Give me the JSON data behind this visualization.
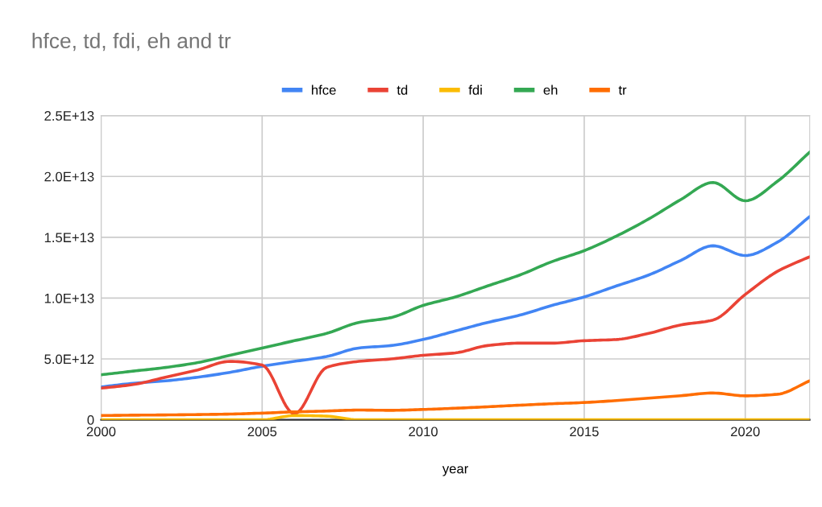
{
  "chart_data": {
    "type": "line",
    "title": "hfce, td, fdi, eh and tr",
    "xlabel": "year",
    "x": [
      2000,
      2001,
      2002,
      2003,
      2004,
      2005,
      2006,
      2007,
      2008,
      2009,
      2010,
      2011,
      2012,
      2013,
      2014,
      2015,
      2016,
      2017,
      2018,
      2019,
      2020,
      2021,
      2022
    ],
    "series": [
      {
        "name": "hfce",
        "color": "#4285f4",
        "values": [
          2700000000000.0,
          3000000000000.0,
          3200000000000.0,
          3500000000000.0,
          3900000000000.0,
          4400000000000.0,
          4800000000000.0,
          5200000000000.0,
          5900000000000.0,
          6100000000000.0,
          6600000000000.0,
          7300000000000.0,
          8000000000000.0,
          8600000000000.0,
          9400000000000.0,
          10100000000000.0,
          11000000000000.0,
          11900000000000.0,
          13100000000000.0,
          14300000000000.0,
          13500000000000.0,
          14600000000000.0,
          16700000000000.0
        ]
      },
      {
        "name": "td",
        "color": "#ea4335",
        "values": [
          2600000000000.0,
          2900000000000.0,
          3500000000000.0,
          4100000000000.0,
          4800000000000.0,
          4500000000000.0,
          500000000000.0,
          4300000000000.0,
          4800000000000.0,
          5000000000000.0,
          5300000000000.0,
          5500000000000.0,
          6100000000000.0,
          6300000000000.0,
          6300000000000.0,
          6500000000000.0,
          6600000000000.0,
          7100000000000.0,
          7800000000000.0,
          8200000000000.0,
          10300000000000.0,
          12200000000000.0,
          13400000000000.0
        ]
      },
      {
        "name": "fdi",
        "color": "#fbbc04",
        "values": [
          0,
          0,
          0,
          0,
          0,
          0,
          350000000000.0,
          300000000000.0,
          0,
          0,
          0,
          0,
          0,
          0,
          0,
          0,
          0,
          0,
          0,
          0,
          0,
          0,
          0
        ]
      },
      {
        "name": "eh",
        "color": "#34a853",
        "values": [
          3700000000000.0,
          4000000000000.0,
          4300000000000.0,
          4700000000000.0,
          5300000000000.0,
          5900000000000.0,
          6500000000000.0,
          7100000000000.0,
          8000000000000.0,
          8400000000000.0,
          9400000000000.0,
          10100000000000.0,
          11000000000000.0,
          11900000000000.0,
          13000000000000.0,
          13900000000000.0,
          15100000000000.0,
          16500000000000.0,
          18100000000000.0,
          19500000000000.0,
          18000000000000.0,
          19600000000000.0,
          22000000000000.0
        ]
      },
      {
        "name": "tr",
        "color": "#ff6d01",
        "values": [
          350000000000.0,
          380000000000.0,
          400000000000.0,
          430000000000.0,
          470000000000.0,
          550000000000.0,
          650000000000.0,
          720000000000.0,
          800000000000.0,
          780000000000.0,
          850000000000.0,
          950000000000.0,
          1070000000000.0,
          1200000000000.0,
          1320000000000.0,
          1420000000000.0,
          1580000000000.0,
          1780000000000.0,
          1980000000000.0,
          2200000000000.0,
          1970000000000.0,
          2100000000000.0,
          3200000000000.0
        ]
      }
    ],
    "xlim": [
      2000,
      2022
    ],
    "xticks": [
      2000,
      2005,
      2010,
      2015,
      2020
    ],
    "ylim": [
      0,
      25000000000000.0
    ],
    "yticks": [
      0,
      {
        "value": 5000000000000.0,
        "label": "5.0E+12"
      },
      {
        "value": 10000000000000.0,
        "label": "1.0E+13"
      },
      {
        "value": 15000000000000.0,
        "label": "1.5E+13"
      },
      {
        "value": 20000000000000.0,
        "label": "2.0E+13"
      },
      {
        "value": 25000000000000.0,
        "label": "2.5E+13"
      }
    ],
    "grid": true,
    "legend": "top",
    "line_style": "solid"
  }
}
